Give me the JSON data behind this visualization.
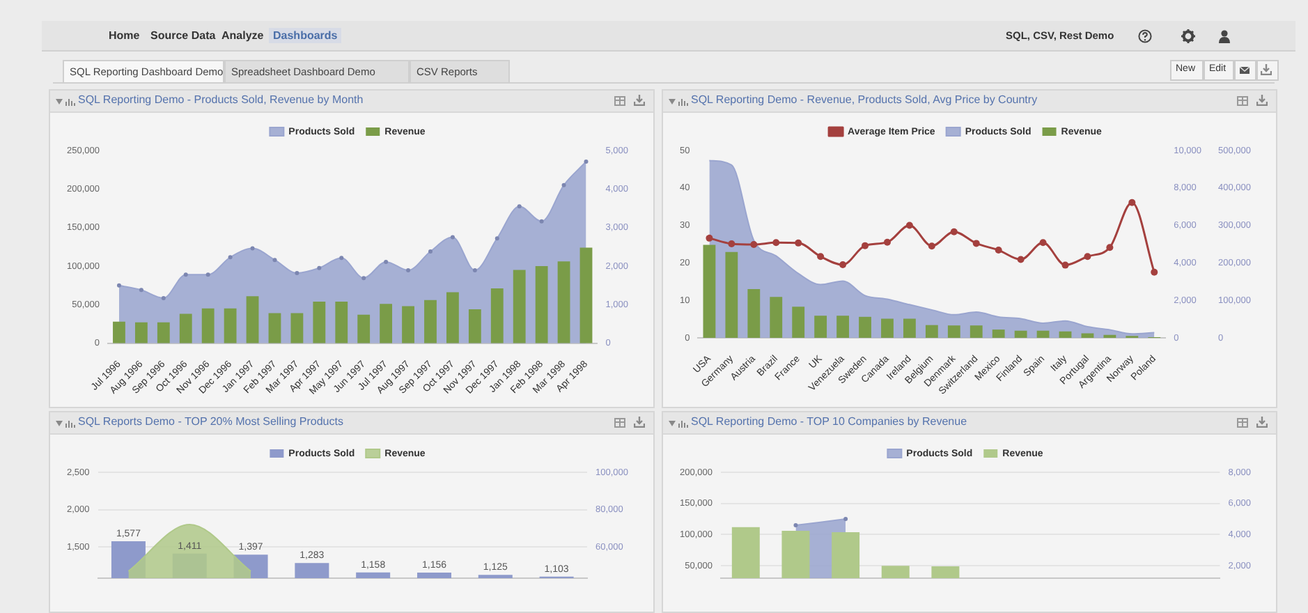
{
  "chart_data": [
    {
      "type": "other",
      "annotations": [
        "Home",
        "Source Data",
        "Analyze",
        "Dashboards",
        "SQL, CSV, Rest Demo",
        "SQL Reporting Dashboard Demo",
        "Spreadsheet Dashboard Demo",
        "CSV Reports",
        "New",
        "Edit"
      ]
    },
    {
      "type": "bar",
      "title": "SQL Reporting Demo - Products Sold, Revenue by Month",
      "legend": "top",
      "categories": [
        "Jul 1996",
        "Aug 1996",
        "Sep 1996",
        "Oct 1996",
        "Nov 1996",
        "Dec 1996",
        "Jan 1997",
        "Feb 1997",
        "Mar 1997",
        "Apr 1997",
        "May 1997",
        "Jun 1997",
        "Jul 1997",
        "Aug 1997",
        "Sep 1997",
        "Oct 1997",
        "Nov 1997",
        "Dec 1997",
        "Jan 1998",
        "Feb 1998",
        "Mar 1998",
        "Apr 1998"
      ],
      "series": [
        {
          "name": "Products Sold",
          "type": "area",
          "axis": "y2",
          "color": "#9aa5cf",
          "marker": "circle",
          "values": [
            1500,
            1380,
            1170,
            1780,
            1780,
            2230,
            2460,
            2160,
            1820,
            1950,
            2210,
            1690,
            2110,
            1890,
            2380,
            2750,
            1890,
            2720,
            3550,
            3160,
            4100,
            4710
          ]
        },
        {
          "name": "Revenue",
          "type": "bar",
          "axis": "y",
          "color": "#7a9c48",
          "values": [
            28000,
            27000,
            27000,
            38000,
            45000,
            45000,
            61000,
            39000,
            39000,
            54000,
            54000,
            37000,
            51000,
            48000,
            56000,
            66000,
            44000,
            71000,
            95000,
            100000,
            106000,
            124000
          ]
        }
      ],
      "ylim": [
        0,
        250000
      ],
      "yticks": [
        0,
        {
          "value": 50000,
          "label": "50,000"
        },
        {
          "value": 100000,
          "label": "100,000"
        },
        {
          "value": 150000,
          "label": "150,000"
        },
        {
          "value": 200000,
          "label": "200,000"
        },
        {
          "value": 250000,
          "label": "250,000"
        }
      ],
      "y2lim": [
        0,
        5000
      ],
      "y2ticks": [
        0,
        {
          "value": 1000,
          "label": "1,000"
        },
        {
          "value": 2000,
          "label": "2,000"
        },
        {
          "value": 3000,
          "label": "3,000"
        },
        {
          "value": 4000,
          "label": "4,000"
        },
        {
          "value": 5000,
          "label": "5,000"
        }
      ]
    },
    {
      "type": "bar",
      "title": "SQL Reporting Demo - Revenue, Products Sold, Avg Price by Country",
      "legend": "top",
      "categories": [
        "USA",
        "Germany",
        "Austria",
        "Brazil",
        "France",
        "UK",
        "Venezuela",
        "Sweden",
        "Canada",
        "Ireland",
        "Belgium",
        "Denmark",
        "Switzerland",
        "Mexico",
        "Finland",
        "Spain",
        "Italy",
        "Portugal",
        "Argentina",
        "Norway",
        "Poland"
      ],
      "series": [
        {
          "name": "Average Item Price",
          "type": "line",
          "axis": "y",
          "color": "#a4403e",
          "marker": "circle",
          "values": [
            26.6,
            25.1,
            24.9,
            25.4,
            25.3,
            21.7,
            19.5,
            24.6,
            25.5,
            30.0,
            24.5,
            28.3,
            25.2,
            23.4,
            20.9,
            25.4,
            19.4,
            21.7,
            24.1,
            36.1,
            17.5
          ]
        },
        {
          "name": "Products Sold",
          "type": "area",
          "axis": "y2",
          "color": "#9aa5cf",
          "values": [
            9460,
            9220,
            5200,
            4370,
            3430,
            2840,
            3030,
            2250,
            2060,
            1770,
            1490,
            1230,
            1370,
            1110,
            1020,
            780,
            900,
            590,
            430,
            210,
            280
          ]
        },
        {
          "name": "Revenue",
          "type": "bar",
          "axis": "y3",
          "color": "#7a9c48",
          "values": [
            248000,
            229000,
            130000,
            109000,
            83000,
            59000,
            59000,
            56000,
            51000,
            51000,
            34000,
            33000,
            33000,
            22000,
            19000,
            19000,
            17000,
            12000,
            8000,
            5000,
            2000
          ]
        }
      ],
      "ylim": [
        0,
        50
      ],
      "yticks": [
        0,
        10,
        20,
        30,
        40,
        50
      ],
      "y2lim": [
        0,
        10000
      ],
      "y2ticks": [
        0,
        {
          "value": 2000,
          "label": "2,000"
        },
        {
          "value": 4000,
          "label": "4,000"
        },
        {
          "value": 6000,
          "label": "6,000"
        },
        {
          "value": 8000,
          "label": "8,000"
        },
        {
          "value": 10000,
          "label": "10,000"
        }
      ],
      "y3lim": [
        0,
        500000
      ],
      "y3ticks": [
        0,
        {
          "value": 100000,
          "label": "100,000"
        },
        {
          "value": 200000,
          "label": "200,000"
        },
        {
          "value": 300000,
          "label": "300,000"
        },
        {
          "value": 400000,
          "label": "400,000"
        },
        {
          "value": 500000,
          "label": "500,000"
        }
      ]
    },
    {
      "type": "bar",
      "title": "SQL Reports Demo - TOP 20% Most Selling Products",
      "legend": "top",
      "grid": "y",
      "categories": [
        null,
        null,
        null,
        null,
        null,
        null,
        null,
        null
      ],
      "series": [
        {
          "name": "Products Sold",
          "type": "bar",
          "axis": "y",
          "color": "#8e9acb",
          "values": [
            1577,
            1411,
            1397,
            1283,
            1158,
            1156,
            1125,
            1103
          ],
          "value_labels": [
            "1,577",
            "1,411",
            "1,397",
            "1,283",
            "1,158",
            "1,156",
            "1,125",
            "1,103"
          ]
        },
        {
          "name": "Revenue",
          "type": "area",
          "axis": "y2",
          "color": "#b0c98a",
          "values": [
            47000,
            72000,
            47000,
            null,
            null,
            null,
            null,
            null
          ]
        }
      ],
      "ylim": [
        1080,
        2500
      ],
      "yticks": [
        {
          "value": 1500,
          "label": "1,500"
        },
        {
          "value": 2000,
          "label": "2,000"
        },
        {
          "value": 2500,
          "label": "2,500"
        }
      ],
      "y2lim": [
        43200,
        100000
      ],
      "y2ticks": [
        {
          "value": 60000,
          "label": "60,000"
        },
        {
          "value": 80000,
          "label": "80,000"
        },
        {
          "value": 100000,
          "label": "100,000"
        }
      ]
    },
    {
      "type": "bar",
      "title": "SQL Reporting Demo - TOP 10 Companies by Revenue",
      "legend": "top",
      "grid": "y",
      "categories": [
        null,
        null,
        null,
        null,
        null,
        null,
        null,
        null,
        null,
        null
      ],
      "series": [
        {
          "name": "Products Sold",
          "type": "area",
          "axis": "y2",
          "color": "#9aa5cf",
          "marker": "circle",
          "values": [
            null,
            4600,
            5000,
            null,
            null,
            null,
            null,
            null,
            null,
            null
          ]
        },
        {
          "name": "Revenue",
          "type": "bar",
          "axis": "y",
          "color": "#b0c98a",
          "values": [
            112000,
            106000,
            104000,
            50000,
            49000,
            null,
            null,
            null,
            null,
            null
          ]
        }
      ],
      "ylim": [
        30000,
        200000
      ],
      "yticks": [
        {
          "value": 50000,
          "label": "50,000"
        },
        {
          "value": 100000,
          "label": "100,000"
        },
        {
          "value": 150000,
          "label": "150,000"
        },
        {
          "value": 200000,
          "label": "200,000"
        }
      ],
      "y2lim": [
        1200,
        8000
      ],
      "y2ticks": [
        {
          "value": 2000,
          "label": "2,000"
        },
        {
          "value": 4000,
          "label": "4,000"
        },
        {
          "value": 6000,
          "label": "6,000"
        },
        {
          "value": 8000,
          "label": "8,000"
        }
      ]
    }
  ]
}
